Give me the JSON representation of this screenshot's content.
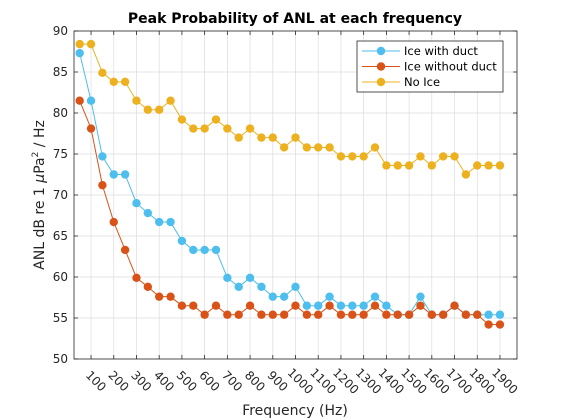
{
  "chart_data": {
    "type": "line",
    "title": "Peak Probability of ANL at each frequency",
    "xlabel": "Frequency (Hz)",
    "ylabel_prefix": "ANL dB re 1 ",
    "ylabel_mu": "μ",
    "ylabel_pa": "Pa",
    "ylabel_exp": "2",
    "ylabel_suffix": " / Hz",
    "xlim": [
      25,
      1975
    ],
    "ylim": [
      50,
      90
    ],
    "xticks": [
      100,
      200,
      300,
      400,
      500,
      600,
      700,
      800,
      900,
      1000,
      1100,
      1200,
      1300,
      1400,
      1500,
      1600,
      1700,
      1800,
      1900
    ],
    "xtick_labels": [
      "100",
      "200",
      "300",
      "400",
      "500",
      "600",
      "700",
      "800",
      "900",
      "1000",
      "1100",
      "1200",
      "1300",
      "1400",
      "1500",
      "1600",
      "1700",
      "1800",
      "1900"
    ],
    "yticks": [
      50,
      55,
      60,
      65,
      70,
      75,
      80,
      85,
      90
    ],
    "ytick_labels": [
      "50",
      "55",
      "60",
      "65",
      "70",
      "75",
      "80",
      "85",
      "90"
    ],
    "grid": true,
    "legend_position": "top-right",
    "x": [
      50,
      100,
      150,
      200,
      250,
      300,
      350,
      400,
      450,
      500,
      550,
      600,
      650,
      700,
      750,
      800,
      850,
      900,
      950,
      1000,
      1050,
      1100,
      1150,
      1200,
      1250,
      1300,
      1350,
      1400,
      1450,
      1500,
      1550,
      1600,
      1650,
      1700,
      1750,
      1800,
      1850,
      1900
    ],
    "series": [
      {
        "name": "Ice with duct",
        "color": "#4DBEEE",
        "values": [
          87.3,
          81.5,
          74.7,
          72.5,
          72.5,
          69.0,
          67.8,
          66.7,
          66.7,
          64.4,
          63.3,
          63.3,
          63.3,
          59.9,
          58.8,
          59.9,
          58.8,
          57.6,
          57.6,
          58.8,
          56.5,
          56.5,
          57.6,
          56.5,
          56.5,
          56.5,
          57.6,
          56.5,
          55.4,
          55.4,
          57.6,
          55.4,
          55.4,
          56.5,
          55.4,
          55.4,
          55.4,
          55.4
        ]
      },
      {
        "name": "Ice without duct",
        "color": "#D95319",
        "values": [
          81.5,
          78.1,
          71.2,
          66.7,
          63.3,
          59.9,
          58.8,
          57.6,
          57.6,
          56.5,
          56.5,
          55.4,
          56.5,
          55.4,
          55.4,
          56.5,
          55.4,
          55.4,
          55.4,
          56.5,
          55.4,
          55.4,
          56.5,
          55.4,
          55.4,
          55.4,
          56.5,
          55.4,
          55.4,
          55.4,
          56.5,
          55.4,
          55.4,
          56.5,
          55.4,
          55.4,
          54.2,
          54.2
        ]
      },
      {
        "name": "No Ice",
        "color": "#EDB120",
        "values": [
          88.4,
          88.4,
          84.9,
          83.8,
          83.8,
          81.5,
          80.4,
          80.4,
          81.5,
          79.2,
          78.1,
          78.1,
          79.2,
          78.1,
          77.0,
          78.1,
          77.0,
          77.0,
          75.8,
          77.0,
          75.8,
          75.8,
          75.8,
          74.7,
          74.7,
          74.7,
          75.8,
          73.6,
          73.6,
          73.6,
          74.7,
          73.6,
          74.7,
          74.7,
          72.5,
          73.6,
          73.6,
          73.6
        ]
      }
    ]
  }
}
